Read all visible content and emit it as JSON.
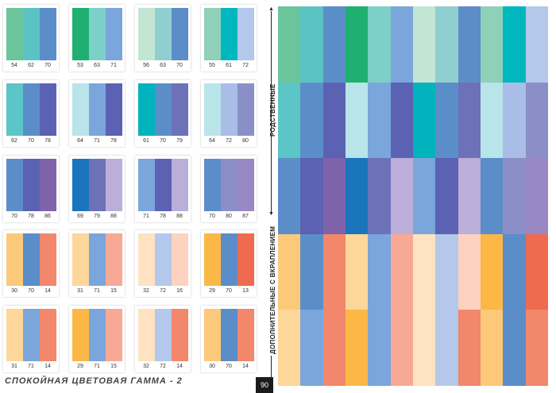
{
  "footer": {
    "title": "СПОКОЙНАЯ ЦВЕТОВАЯ ГАММА - 2",
    "page_number": "90"
  },
  "side_labels": {
    "related": "РОДСТВЕННЫЕ",
    "complementary": "ДОПОЛНИТЕЛЬНЫЕ С ВКРАПЛЕНИЕМ"
  },
  "swatch_rows": [
    [
      {
        "colors": [
          "#6cc49a",
          "#5cc3c4",
          "#5b8ec8"
        ],
        "codes": [
          "54",
          "62",
          "70"
        ]
      },
      {
        "colors": [
          "#1fb071",
          "#7dd0c7",
          "#7aa6db"
        ],
        "codes": [
          "53",
          "63",
          "71"
        ]
      },
      {
        "colors": [
          "#c3e6d4",
          "#8fcfcf",
          "#5d8dc8"
        ],
        "codes": [
          "56",
          "63",
          "70"
        ]
      },
      {
        "colors": [
          "#8fd0b9",
          "#00b7bf",
          "#b3c8ea"
        ],
        "codes": [
          "55",
          "61",
          "72"
        ]
      }
    ],
    [
      {
        "colors": [
          "#5bc5c8",
          "#5b8ec8",
          "#5b62b3"
        ],
        "codes": [
          "62",
          "70",
          "78"
        ]
      },
      {
        "colors": [
          "#b9e4ea",
          "#7aa6db",
          "#5b62b3"
        ],
        "codes": [
          "64",
          "71",
          "78"
        ]
      },
      {
        "colors": [
          "#00b3bd",
          "#5b8ec8",
          "#6d72b8"
        ],
        "codes": [
          "61",
          "70",
          "79"
        ]
      },
      {
        "colors": [
          "#b9e4ea",
          "#a9bde6",
          "#8b8fc8"
        ],
        "codes": [
          "64",
          "72",
          "80"
        ]
      }
    ],
    [
      {
        "colors": [
          "#5b8ec8",
          "#5b62b3",
          "#7e63ab"
        ],
        "codes": [
          "70",
          "78",
          "86"
        ]
      },
      {
        "colors": [
          "#1a75bd",
          "#6d72b8",
          "#bbaed8"
        ],
        "codes": [
          "69",
          "79",
          "88"
        ]
      },
      {
        "colors": [
          "#7aa6db",
          "#5b62b3",
          "#bbaed8"
        ],
        "codes": [
          "71",
          "78",
          "88"
        ]
      },
      {
        "colors": [
          "#5b8ec8",
          "#8b8fc8",
          "#9a88c4"
        ],
        "codes": [
          "70",
          "80",
          "87"
        ]
      }
    ],
    [
      {
        "colors": [
          "#fcc97a",
          "#5b8ec8",
          "#f2876c"
        ],
        "codes": [
          "30",
          "70",
          "14"
        ]
      },
      {
        "colors": [
          "#fdd79a",
          "#7aa6db",
          "#f7a995"
        ],
        "codes": [
          "31",
          "71",
          "15"
        ]
      },
      {
        "colors": [
          "#fee2c2",
          "#b3c8ea",
          "#fdd2bf"
        ],
        "codes": [
          "32",
          "72",
          "16"
        ]
      },
      {
        "colors": [
          "#fbb846",
          "#5b8ec8",
          "#ef6a4f"
        ],
        "codes": [
          "29",
          "70",
          "13"
        ]
      }
    ],
    [
      {
        "colors": [
          "#fdd79a",
          "#7aa6db",
          "#f2876c"
        ],
        "codes": [
          "31",
          "71",
          "14"
        ]
      },
      {
        "colors": [
          "#fbb846",
          "#7aa6db",
          "#f7a995"
        ],
        "codes": [
          "29",
          "71",
          "15"
        ]
      },
      {
        "colors": [
          "#fee2c2",
          "#b3c8ea",
          "#f2876c"
        ],
        "codes": [
          "32",
          "72",
          "14"
        ]
      },
      {
        "colors": [
          "#fcc97a",
          "#5b8ec8",
          "#f2876c"
        ],
        "codes": [
          "30",
          "70",
          "14"
        ]
      }
    ]
  ],
  "grid_rows": [
    [
      "#6cc49a",
      "#5cc3c4",
      "#5b8ec8",
      "#1fb071",
      "#7dd0c7",
      "#7aa6db",
      "#c3e6d4",
      "#8fcfcf",
      "#5d8dc8",
      "#8fd0b9",
      "#00b7bf",
      "#b3c8ea"
    ],
    [
      "#5bc5c8",
      "#5b8ec8",
      "#5b62b3",
      "#b9e4ea",
      "#7aa6db",
      "#5b62b3",
      "#00b3bd",
      "#5b8ec8",
      "#6d72b8",
      "#b9e4ea",
      "#a9bde6",
      "#8b8fc8"
    ],
    [
      "#5b8ec8",
      "#5b62b3",
      "#7e63ab",
      "#1a75bd",
      "#6d72b8",
      "#bbaed8",
      "#7aa6db",
      "#5b62b3",
      "#bbaed8",
      "#5b8ec8",
      "#8b8fc8",
      "#9a88c4"
    ],
    [
      "#fcc97a",
      "#5b8ec8",
      "#f2876c",
      "#fdd79a",
      "#7aa6db",
      "#f7a995",
      "#fee2c2",
      "#b3c8ea",
      "#fdd2bf",
      "#fbb846",
      "#5b8ec8",
      "#ef6a4f"
    ],
    [
      "#fdd79a",
      "#7aa6db",
      "#f2876c",
      "#fbb846",
      "#7aa6db",
      "#f7a995",
      "#fee2c2",
      "#b3c8ea",
      "#f2876c",
      "#fcc97a",
      "#5b8ec8",
      "#f2876c"
    ]
  ]
}
